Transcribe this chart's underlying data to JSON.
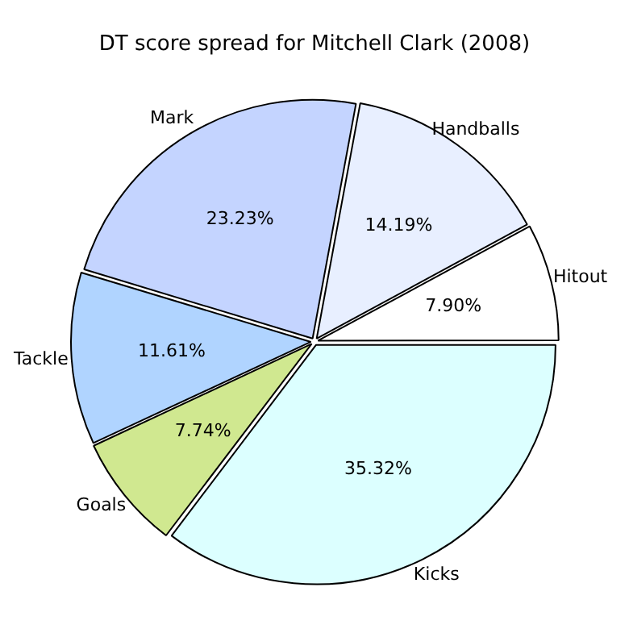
{
  "chart_data": {
    "type": "pie",
    "title": "DT score spread for Mitchell Clark (2008)",
    "categories": [
      "Kicks",
      "Goals",
      "Tackle",
      "Mark",
      "Handballs",
      "Hitout"
    ],
    "values": [
      35.32,
      7.74,
      11.61,
      23.23,
      14.19,
      7.9
    ],
    "value_labels": [
      "35.32%",
      "7.74%",
      "11.61%",
      "23.23%",
      "14.19%",
      "7.90%"
    ],
    "colors": [
      "#dcffff",
      "#d0e890",
      "#b0d4ff",
      "#c4d4ff",
      "#e8efff",
      "#ffffff"
    ],
    "legend": false
  }
}
